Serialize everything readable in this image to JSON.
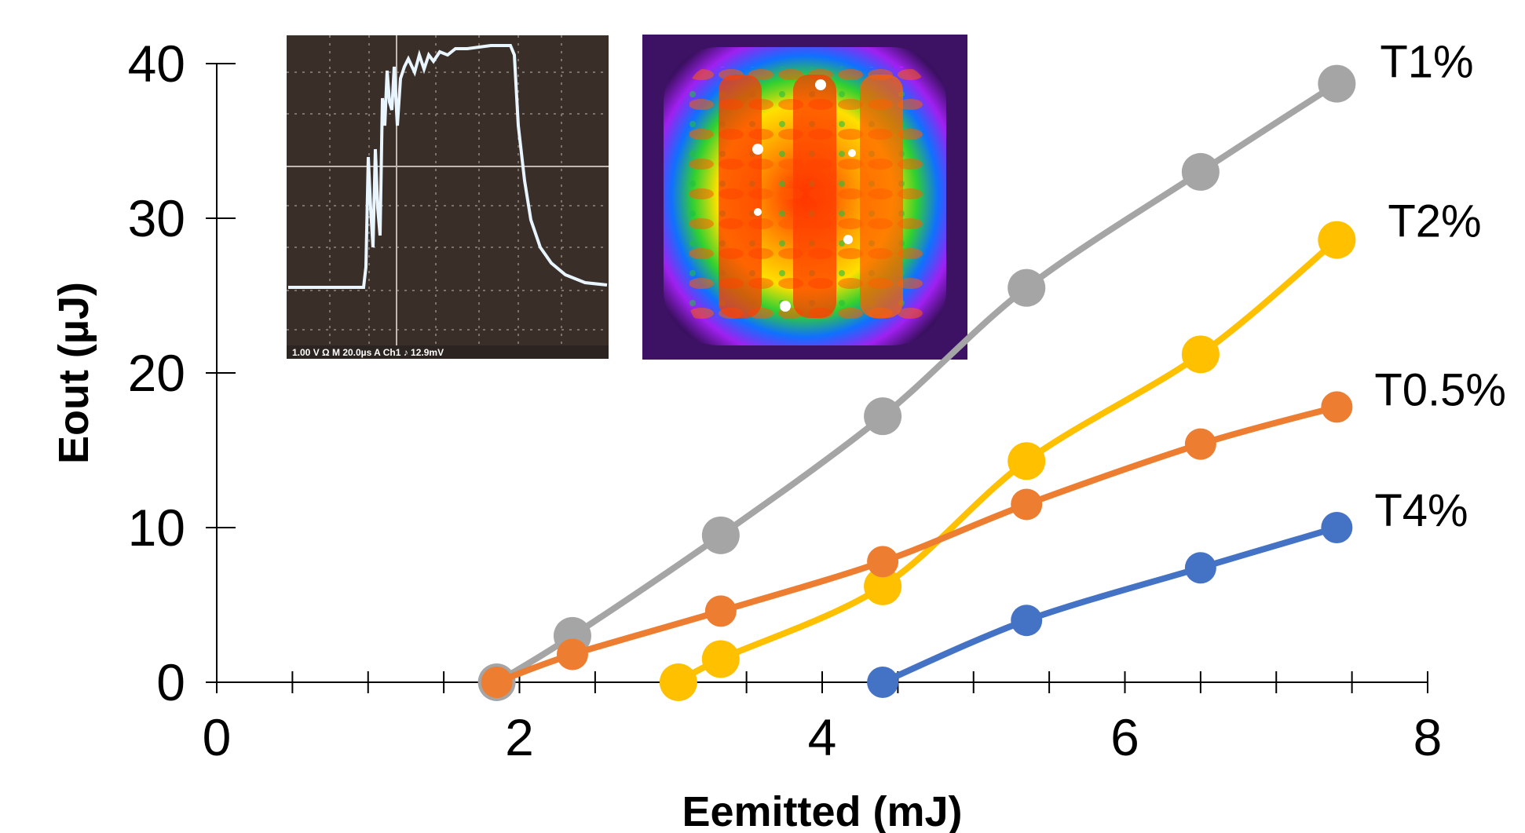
{
  "chart_data": {
    "type": "line",
    "xlabel": "Eemitted (mJ)",
    "ylabel": "Eout (µJ)",
    "xlim": [
      0,
      8
    ],
    "ylim": [
      0,
      40
    ],
    "x_ticks": [
      "0",
      "2",
      "4",
      "6",
      "8"
    ],
    "y_ticks": [
      "0",
      "10",
      "20",
      "30",
      "40"
    ],
    "grid": false,
    "series": [
      {
        "name": "T1%",
        "color": "#a5a5a5",
        "x": [
          1.85,
          2.35,
          3.33,
          4.4,
          5.35,
          6.5,
          7.4
        ],
        "y": [
          0,
          3.0,
          9.5,
          17.2,
          25.5,
          33.0,
          38.7
        ]
      },
      {
        "name": "T2%",
        "color": "#ffc000",
        "x": [
          3.05,
          3.33,
          4.4,
          5.35,
          6.5,
          7.4
        ],
        "y": [
          0,
          1.5,
          6.2,
          14.3,
          21.2,
          28.6
        ]
      },
      {
        "name": "T0.5%",
        "color": "#ed7d31",
        "x": [
          1.85,
          2.35,
          3.33,
          4.4,
          5.35,
          6.5,
          7.4
        ],
        "y": [
          0,
          1.8,
          4.6,
          7.8,
          11.5,
          15.4,
          17.8
        ]
      },
      {
        "name": "T4%",
        "color": "#4472c4",
        "x": [
          4.4,
          5.35,
          6.5,
          7.4
        ],
        "y": [
          0,
          4.0,
          7.4,
          10.0
        ]
      }
    ],
    "insets": [
      {
        "kind": "oscilloscope-trace",
        "readout": "1.00 V Ω  M 20.0µs  A  Ch1  ♪  12.9mV"
      },
      {
        "kind": "beam-profile-heatmap"
      }
    ]
  }
}
